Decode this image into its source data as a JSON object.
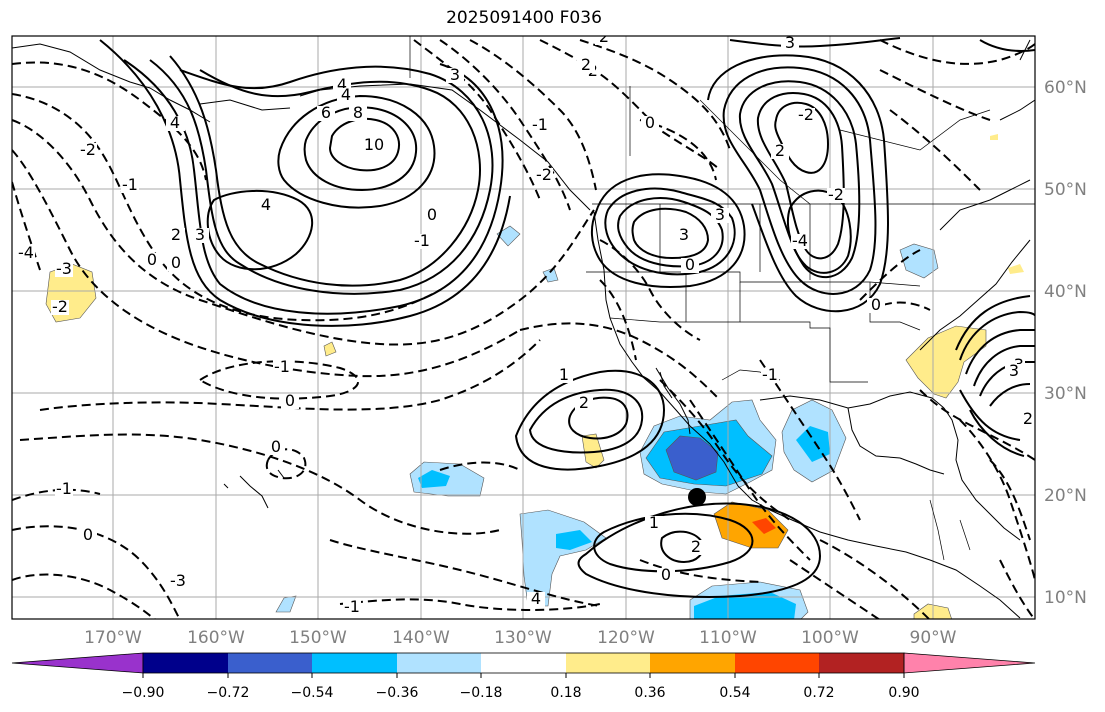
{
  "title": "2025091400 F036",
  "map": {
    "lon_labels": [
      "170°W",
      "160°W",
      "150°W",
      "140°W",
      "130°W",
      "120°W",
      "110°W",
      "100°W",
      "90°W"
    ],
    "lat_labels": [
      "60°N",
      "50°N",
      "40°N",
      "30°N",
      "20°N",
      "10°N"
    ],
    "grid": true,
    "marker": {
      "name": "point-marker",
      "color": "#000000"
    }
  },
  "contour_labels": [
    "2",
    "3",
    "4",
    "4",
    "6",
    "8",
    "10",
    "4",
    "2",
    "3",
    "0",
    "0",
    "-2",
    "-1",
    "-2",
    "-3",
    "-4",
    "-4",
    "3",
    "-2",
    "2",
    "0",
    "-1",
    "-2",
    "-1",
    "0",
    "-1",
    "0",
    "0",
    "1",
    "2",
    "1",
    "2",
    "0",
    "-1",
    "0",
    "-1",
    "-3",
    "4",
    "3",
    "2",
    "-2",
    "0",
    "3",
    "-4",
    "-2",
    "0",
    "-1",
    "-3",
    "2",
    "3",
    "4"
  ],
  "colorbar": {
    "ticks": [
      "−0.90",
      "−0.72",
      "−0.54",
      "−0.36",
      "−0.18",
      "0.18",
      "0.36",
      "0.54",
      "0.72",
      "0.90"
    ],
    "colors": [
      "#9932cc",
      "#00008b",
      "#3a5fcd",
      "#00bfff",
      "#b0e2ff",
      "#ffffff",
      "#ffec8b",
      "#ffa500",
      "#ff4500",
      "#b22222",
      "#ff82ab"
    ]
  },
  "shading_colors": {
    "light_blue": "#b0e2ff",
    "blue": "#00bfff",
    "royal_blue": "#3a5fcd",
    "yellow": "#ffec8b",
    "orange": "#ffa500",
    "red": "#ff4500"
  }
}
